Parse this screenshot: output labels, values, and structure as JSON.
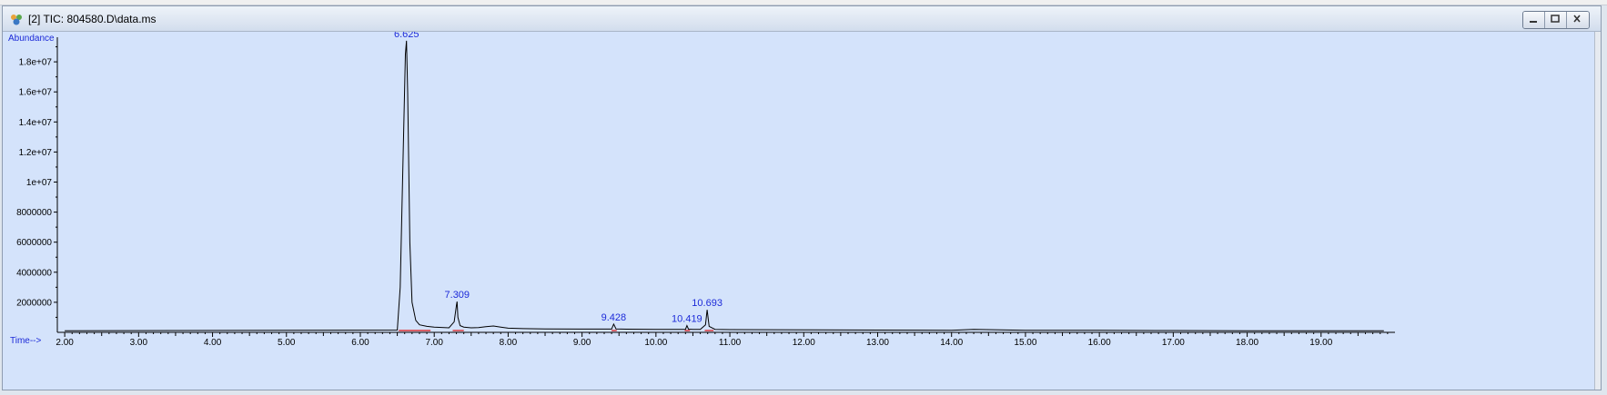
{
  "window": {
    "title": "[2] TIC: 804580.D\\data.ms",
    "icon": "chromatogram-app-icon"
  },
  "chart_data": {
    "type": "line",
    "ylabel": "Abundance",
    "xlabel": "Time-->",
    "xlim": [
      1.9,
      20.0
    ],
    "ylim": [
      0,
      20000000
    ],
    "x_ticks": [
      "2.00",
      "3.00",
      "4.00",
      "5.00",
      "6.00",
      "7.00",
      "8.00",
      "9.00",
      "10.00",
      "11.00",
      "12.00",
      "13.00",
      "14.00",
      "15.00",
      "16.00",
      "17.00",
      "18.00",
      "19.00"
    ],
    "y_ticks": [
      "2000000",
      "4000000",
      "6000000",
      "8000000",
      "1e+07",
      "1.2e+07",
      "1.4e+07",
      "1.6e+07",
      "1.8e+07"
    ],
    "peak_labels": [
      {
        "label": "6.625",
        "x": 6.625,
        "y": 19400000
      },
      {
        "label": "7.309",
        "x": 7.309,
        "y": 2050000
      },
      {
        "label": "9.428",
        "x": 9.428,
        "y": 550000
      },
      {
        "label": "10.419",
        "x": 10.419,
        "y": 450000
      },
      {
        "label": "10.693",
        "x": 10.693,
        "y": 1500000
      }
    ],
    "series": [
      {
        "x": [
          2.0,
          6.5,
          6.54,
          6.58,
          6.61,
          6.625,
          6.64,
          6.67,
          6.7,
          6.75,
          6.8,
          6.9,
          7.0,
          7.2,
          7.27,
          7.3,
          7.309,
          7.32,
          7.35,
          7.4,
          7.5,
          7.6,
          7.7,
          7.8,
          7.9,
          8.0,
          8.2,
          8.5,
          9.0,
          9.4,
          9.428,
          9.46,
          9.6,
          10.0,
          10.4,
          10.419,
          10.44,
          10.5,
          10.6,
          10.67,
          10.693,
          10.72,
          10.8,
          11.0,
          12.0,
          13.0,
          14.0,
          14.3,
          15.0,
          16.0,
          17.0,
          18.0,
          19.0,
          19.85
        ],
        "y": [
          100000,
          150000,
          3000000,
          12000000,
          18500000,
          19400000,
          16000000,
          6000000,
          2000000,
          800000,
          500000,
          400000,
          350000,
          300000,
          700000,
          1800000,
          2050000,
          1000000,
          450000,
          350000,
          300000,
          320000,
          380000,
          420000,
          350000,
          280000,
          250000,
          230000,
          220000,
          220000,
          550000,
          230000,
          210000,
          200000,
          200000,
          450000,
          210000,
          200000,
          200000,
          500000,
          1500000,
          400000,
          200000,
          180000,
          170000,
          150000,
          140000,
          200000,
          140000,
          130000,
          120000,
          110000,
          110000,
          100000
        ]
      }
    ]
  }
}
